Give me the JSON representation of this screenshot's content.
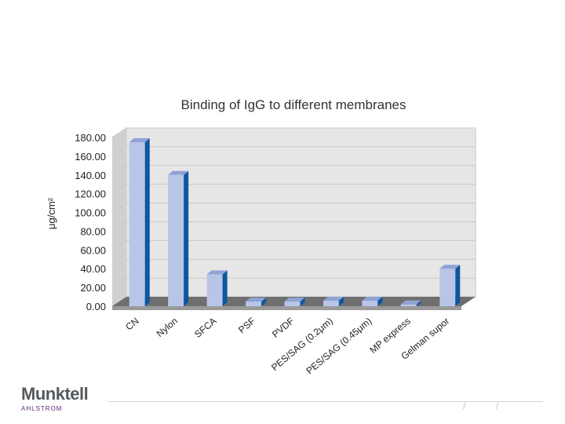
{
  "chart_data": {
    "type": "bar",
    "title": "Binding of IgG to different membranes",
    "ylabel": "μg/cm²",
    "xlabel": "",
    "categories": [
      "CN",
      "Nylon",
      "SFCA",
      "PSF",
      "PVDF",
      "PES/SAG (0.2μm)",
      "PES/SAG (0.45μm)",
      "MP express",
      "Gelman supor"
    ],
    "values": [
      175,
      140,
      34,
      5,
      5,
      6,
      6,
      2,
      40
    ],
    "ylim": [
      0,
      180
    ],
    "yticks": [
      "0.00",
      "20.00",
      "40.00",
      "60.00",
      "80.00",
      "100.00",
      "120.00",
      "140.00",
      "160.00",
      "180.00"
    ],
    "grid": true,
    "legend": "none",
    "colors": {
      "bar_front": "#b8c5e6",
      "bar_side": "#0d56a0",
      "bar_top": "#8fa3d4",
      "plot_bg": "#e6e6e6",
      "grid": "#c9c9c9"
    }
  },
  "footer": {
    "logo_name": "Munktell",
    "logo_sub": "AHLSTROM"
  }
}
